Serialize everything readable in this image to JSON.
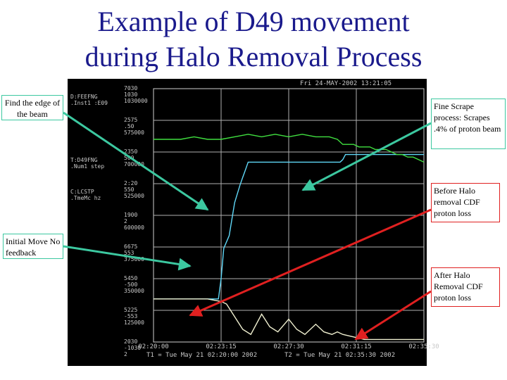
{
  "slide": {
    "title_line1": "Example of D49 movement",
    "title_line2": "during Halo Removal Process"
  },
  "callouts": {
    "find_edge": "Find the edge of the beam",
    "fine_scrape": "Fine Scrape process: Scrapes .4% of proton beam",
    "before_halo": "Before Halo removal CDF proton loss",
    "initial_move": "Initial Move No feedback",
    "after_halo": "After Halo Removal CDF proton loss"
  },
  "colors": {
    "title": "#1a1a8c",
    "green_arrow": "#3cc8a0",
    "red_arrow": "#e02020",
    "position_trace": "#60d8f8",
    "scrape_trace": "#40e040",
    "loss_trace": "#f0f0d0",
    "screen_text": "#c8c8c8"
  },
  "chart_data": {
    "type": "line",
    "header": "Fri 24-MAY-2002 13:21:05",
    "channels": [
      {
        "name": "D:FEEFNG",
        "sub": ".Inst1 :E09",
        "top": "7030",
        "mid": "1030",
        "bottom": "1030000"
      },
      {
        "name": "",
        "sub": "",
        "top": "2575",
        "mid": ".50",
        "bottom": "575000"
      },
      {
        "name": "T:D49FNG",
        "sub": ".Num1 step",
        "top": "2350",
        "mid": "500",
        "bottom": "700000"
      },
      {
        "name": "C:LCSTP",
        "sub": ".TmeMc hz",
        "top": "2:20",
        "mid": "550",
        "bottom": "525000"
      },
      {
        "name": "",
        "sub": "",
        "top": "1900",
        "mid": "2",
        "bottom": "600000"
      },
      {
        "name": "",
        "sub": "",
        "top": "6675",
        "mid": "553",
        "bottom": "375000"
      },
      {
        "name": "",
        "sub": "",
        "top": "5450",
        "mid": "-500",
        "bottom": "350000"
      },
      {
        "name": "",
        "sub": "",
        "top": "5225",
        "mid": "-553",
        "bottom": "125000"
      },
      {
        "name": "",
        "sub": "",
        "top": "2030",
        "mid": "-1030",
        "bottom": "2"
      }
    ],
    "x_ticks": [
      "02:20:00",
      "02:23:15",
      "02:27:30",
      "02:31:15",
      "02:35:30"
    ],
    "footer_t1": "T1 = Tue May 21 02:20:00 2002",
    "footer_t2": "T2 = Tue May 21 02:35:30 2002",
    "x_range": [
      0,
      100
    ],
    "y_range": [
      0,
      100
    ],
    "series": [
      {
        "color": "#60d8f8",
        "x": [
          0,
          4,
          8,
          12,
          16,
          18,
          20,
          22,
          23,
          24,
          25,
          26,
          28,
          30,
          32,
          33,
          34,
          35,
          36,
          38,
          40,
          45,
          50,
          55,
          60,
          65,
          68,
          69,
          70,
          71,
          72,
          75,
          80,
          85,
          90,
          95,
          100
        ],
        "y": [
          17,
          17,
          17,
          17,
          17,
          17,
          17,
          17,
          17,
          17,
          25,
          37,
          42,
          55,
          62,
          65,
          68,
          71,
          71,
          71,
          71,
          71,
          71,
          71,
          71,
          71,
          71,
          71,
          72,
          74,
          74,
          74,
          74,
          74,
          74,
          74,
          74
        ]
      },
      {
        "color": "#40e040",
        "x": [
          0,
          5,
          10,
          15,
          20,
          25,
          30,
          35,
          40,
          45,
          50,
          55,
          60,
          65,
          68,
          70,
          72,
          74,
          76,
          78,
          80,
          82,
          84,
          86,
          88,
          90,
          92,
          94,
          96,
          98,
          100
        ],
        "y": [
          80,
          80,
          80,
          81,
          80,
          80,
          81,
          82,
          81,
          82,
          81,
          82,
          81,
          81,
          80,
          78,
          78,
          78,
          77,
          77,
          77,
          76,
          76,
          76,
          75,
          74,
          74,
          73,
          73,
          72,
          71
        ]
      },
      {
        "color": "#f0f0d0",
        "x": [
          0,
          10,
          20,
          25,
          27,
          30,
          33,
          36,
          40,
          43,
          46,
          50,
          53,
          56,
          60,
          63,
          66,
          68,
          70,
          74,
          78,
          82,
          86,
          90,
          95,
          100
        ],
        "y": [
          17,
          17,
          17,
          16,
          15,
          10,
          5,
          3,
          11,
          6,
          4,
          9,
          5,
          3,
          7,
          4,
          3,
          4,
          3,
          2,
          1,
          1,
          1,
          1,
          1,
          1
        ]
      }
    ]
  }
}
